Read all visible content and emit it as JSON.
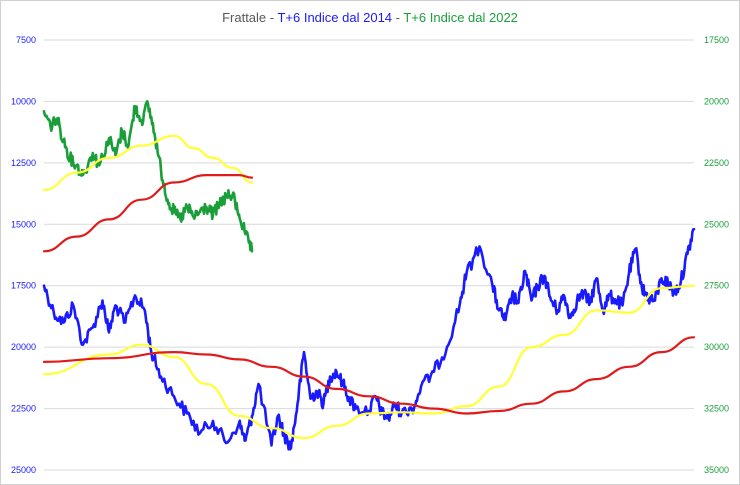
{
  "chart_data": {
    "type": "line",
    "title_parts": [
      {
        "text": "Frattale - ",
        "color": "#595959"
      },
      {
        "text": "T+6 Indice dal 2014",
        "color": "#1a1aff"
      },
      {
        "text": " - ",
        "color": "#595959"
      },
      {
        "text": "T+6 Indice dal 2022",
        "color": "#1a9e3a"
      }
    ],
    "left_axis": {
      "min": 7500,
      "max": 25000,
      "reversed": true,
      "color": "#1a1aff",
      "ticks": [
        "7500",
        "10000",
        "12500",
        "15000",
        "17500",
        "20000",
        "22500",
        "25000"
      ]
    },
    "right_axis": {
      "min": 17500,
      "max": 35000,
      "reversed": true,
      "color": "#1a9e3a",
      "ticks": [
        "17500",
        "20000",
        "22500",
        "25000",
        "27500",
        "30000",
        "32500",
        "35000"
      ]
    },
    "grid": true,
    "x_range": [
      0,
      1
    ],
    "series": [
      {
        "key": "blue",
        "color": "#1a1aff",
        "width": 2.6,
        "axis": "left",
        "noisy": true,
        "x": [
          0,
          0.015,
          0.03,
          0.045,
          0.06,
          0.075,
          0.09,
          0.1,
          0.11,
          0.125,
          0.14,
          0.155,
          0.165,
          0.18,
          0.2,
          0.22,
          0.24,
          0.26,
          0.28,
          0.3,
          0.31,
          0.32,
          0.33,
          0.35,
          0.36,
          0.37,
          0.38,
          0.39,
          0.4,
          0.41,
          0.42,
          0.43,
          0.44,
          0.45,
          0.46,
          0.47,
          0.48,
          0.5,
          0.51,
          0.52,
          0.53,
          0.54,
          0.55,
          0.57,
          0.58,
          0.6,
          0.62,
          0.64,
          0.65,
          0.67,
          0.69,
          0.7,
          0.71,
          0.72,
          0.73,
          0.74,
          0.75,
          0.76,
          0.77,
          0.78,
          0.79,
          0.8,
          0.81,
          0.82,
          0.83,
          0.84,
          0.85,
          0.86,
          0.87,
          0.88,
          0.89,
          0.9,
          0.91,
          0.92,
          0.93,
          0.94,
          0.95,
          0.96,
          0.97,
          0.98,
          0.99,
          1.0
        ],
        "y": [
          17500,
          18600,
          19000,
          18300,
          19900,
          19200,
          18100,
          19400,
          18300,
          19000,
          17900,
          18500,
          20200,
          21200,
          22000,
          22700,
          23500,
          23000,
          23900,
          23100,
          23800,
          22800,
          21500,
          24000,
          22800,
          23600,
          24100,
          22300,
          20200,
          22100,
          21800,
          22300,
          21200,
          21000,
          21500,
          22100,
          22500,
          22600,
          22000,
          22700,
          22900,
          22300,
          22700,
          22400,
          21600,
          21000,
          20000,
          18200,
          17000,
          15900,
          17500,
          18500,
          18900,
          17900,
          18200,
          16900,
          18100,
          17500,
          17100,
          18100,
          18500,
          17900,
          18800,
          18100,
          17800,
          18200,
          17200,
          18500,
          17900,
          18100,
          18300,
          17000,
          16000,
          17600,
          18000,
          18100,
          17200,
          17400,
          17800,
          17300,
          16200,
          15200
        ]
      },
      {
        "key": "blue_ma_short",
        "color": "#ffff33",
        "width": 2.2,
        "axis": "left",
        "noisy": false,
        "x": [
          0,
          0.1,
          0.15,
          0.2,
          0.25,
          0.3,
          0.35,
          0.4,
          0.45,
          0.5,
          0.55,
          0.6,
          0.65,
          0.7,
          0.75,
          0.8,
          0.85,
          0.9,
          0.95,
          1.0
        ],
        "y": [
          21100,
          20300,
          19900,
          20400,
          21500,
          22800,
          23300,
          23700,
          23200,
          22700,
          22650,
          22700,
          22400,
          21600,
          20000,
          19500,
          18500,
          18600,
          17600,
          17500
        ]
      },
      {
        "key": "blue_ma_long",
        "color": "#e01b1b",
        "width": 2.2,
        "axis": "left",
        "noisy": false,
        "x": [
          0,
          0.1,
          0.2,
          0.25,
          0.3,
          0.35,
          0.4,
          0.45,
          0.5,
          0.55,
          0.6,
          0.65,
          0.7,
          0.75,
          0.8,
          0.85,
          0.9,
          0.95,
          1.0
        ],
        "y": [
          20600,
          20450,
          20200,
          20300,
          20500,
          20800,
          21200,
          21700,
          22000,
          22300,
          22500,
          22700,
          22600,
          22300,
          21800,
          21300,
          20800,
          20200,
          19600
        ]
      },
      {
        "key": "green",
        "color": "#1a9e3a",
        "width": 2.6,
        "axis": "right",
        "noisy": true,
        "x": [
          0,
          0.01,
          0.02,
          0.03,
          0.04,
          0.05,
          0.06,
          0.075,
          0.085,
          0.1,
          0.11,
          0.12,
          0.13,
          0.14,
          0.15,
          0.16,
          0.17,
          0.18,
          0.19,
          0.2,
          0.21,
          0.22,
          0.23,
          0.24,
          0.25,
          0.26,
          0.27,
          0.28,
          0.29,
          0.3,
          0.31,
          0.32
        ],
        "y": [
          20400,
          21000,
          20700,
          21600,
          22300,
          22600,
          23000,
          22100,
          22600,
          21500,
          22200,
          21200,
          21800,
          20200,
          20800,
          20100,
          21300,
          22800,
          24000,
          24500,
          24800,
          24300,
          24700,
          24500,
          24300,
          24600,
          24200,
          23900,
          23800,
          24600,
          25400,
          26100
        ]
      },
      {
        "key": "green_ma_short",
        "color": "#ffff33",
        "width": 2.2,
        "axis": "right",
        "noisy": false,
        "x": [
          0,
          0.05,
          0.1,
          0.15,
          0.2,
          0.23,
          0.26,
          0.29,
          0.32
        ],
        "y": [
          23600,
          22900,
          22300,
          21800,
          21400,
          21900,
          22300,
          22700,
          23300
        ]
      },
      {
        "key": "green_ma_long",
        "color": "#e01b1b",
        "width": 2.2,
        "axis": "right",
        "noisy": false,
        "x": [
          0,
          0.05,
          0.1,
          0.15,
          0.2,
          0.25,
          0.3,
          0.32
        ],
        "y": [
          26100,
          25500,
          24800,
          24000,
          23300,
          23000,
          23000,
          23100
        ]
      }
    ]
  }
}
